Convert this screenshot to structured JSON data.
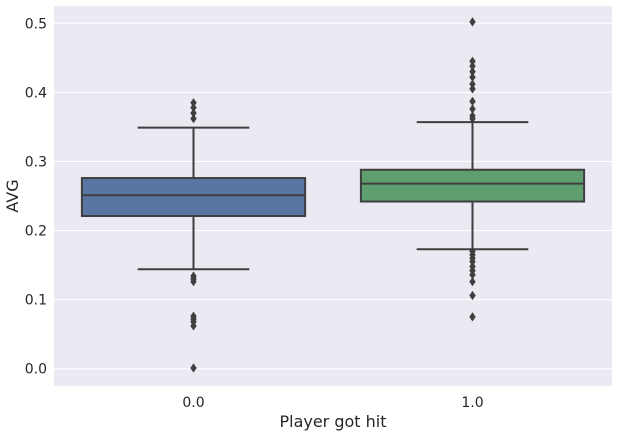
{
  "chart_data": {
    "type": "box",
    "xlabel": "Player got hit",
    "ylabel": "AVG",
    "categories": [
      "0.0",
      "1.0"
    ],
    "ylim": [
      -0.025,
      0.525
    ],
    "yticks": [
      "0.0",
      "0.1",
      "0.2",
      "0.3",
      "0.4",
      "0.5"
    ],
    "grid": true,
    "colors": {
      "background": "#eaeaf2",
      "grid": "#ffffff",
      "line": "#3f3f3f",
      "box": [
        "#5975a4",
        "#5f9e6e"
      ]
    },
    "boxes": [
      {
        "category": "0.0",
        "whisker_low": 0.144,
        "q1": 0.221,
        "median": 0.251,
        "q3": 0.276,
        "whisker_high": 0.349,
        "outliers": [
          0.385,
          0.378,
          0.37,
          0.362,
          0.134,
          0.13,
          0.126,
          0.076,
          0.072,
          0.068,
          0.062,
          0.001
        ]
      },
      {
        "category": "1.0",
        "whisker_low": 0.173,
        "q1": 0.242,
        "median": 0.268,
        "q3": 0.288,
        "whisker_high": 0.357,
        "outliers": [
          0.502,
          0.445,
          0.438,
          0.43,
          0.422,
          0.412,
          0.405,
          0.387,
          0.376,
          0.366,
          0.362,
          0.17,
          0.165,
          0.16,
          0.155,
          0.148,
          0.142,
          0.136,
          0.126,
          0.106,
          0.075
        ]
      }
    ]
  }
}
